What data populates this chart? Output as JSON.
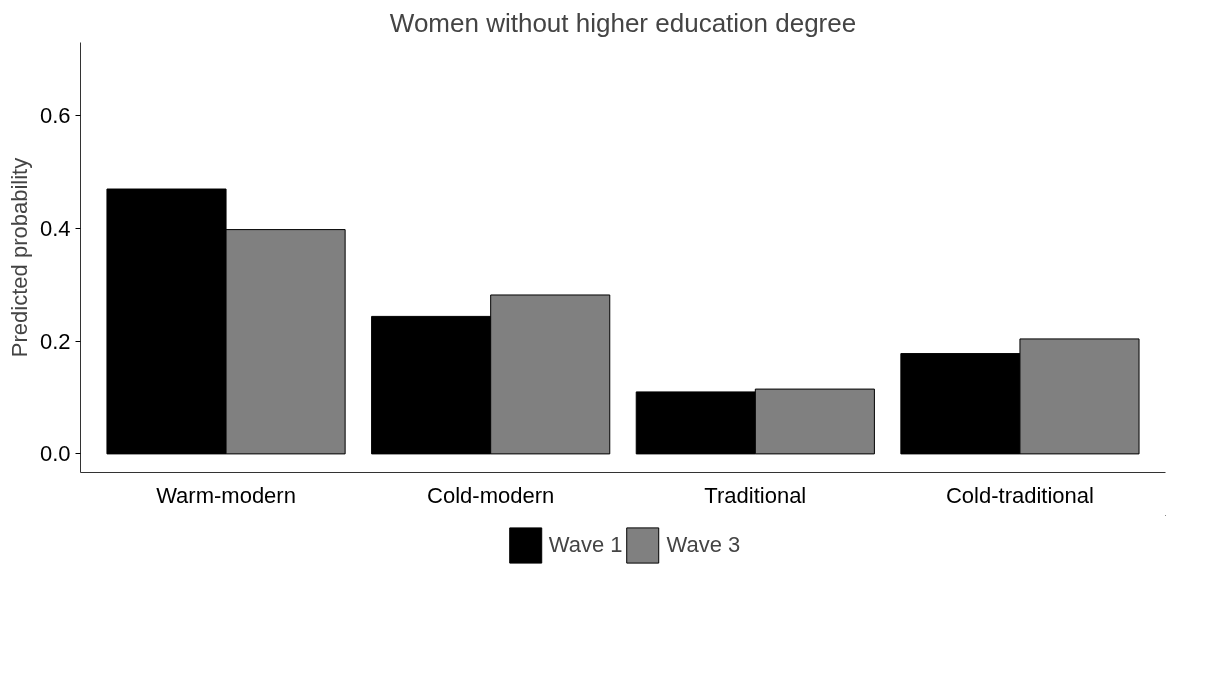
{
  "chart_data": {
    "type": "bar",
    "title": "Women without higher education degree",
    "ylabel": "Predicted probability",
    "categories": [
      "Warm-modern",
      "Cold-modern",
      "Traditional",
      "Cold-traditional"
    ],
    "series": [
      {
        "name": "Wave 1",
        "color": "#000000",
        "values": [
          0.47,
          0.244,
          0.11,
          0.178
        ]
      },
      {
        "name": "Wave 3",
        "color": "#808080",
        "values": [
          0.398,
          0.282,
          0.115,
          0.204
        ]
      }
    ],
    "ylim": [
      -0.033,
      0.73
    ],
    "yticks": [
      {
        "value": 0,
        "label": "0.0"
      },
      {
        "value": 0.2,
        "label": "0.2"
      },
      {
        "value": 0.4,
        "label": "0.4"
      },
      {
        "value": 0.6,
        "label": "0.6"
      }
    ],
    "grid": false,
    "legend": "bottom"
  }
}
